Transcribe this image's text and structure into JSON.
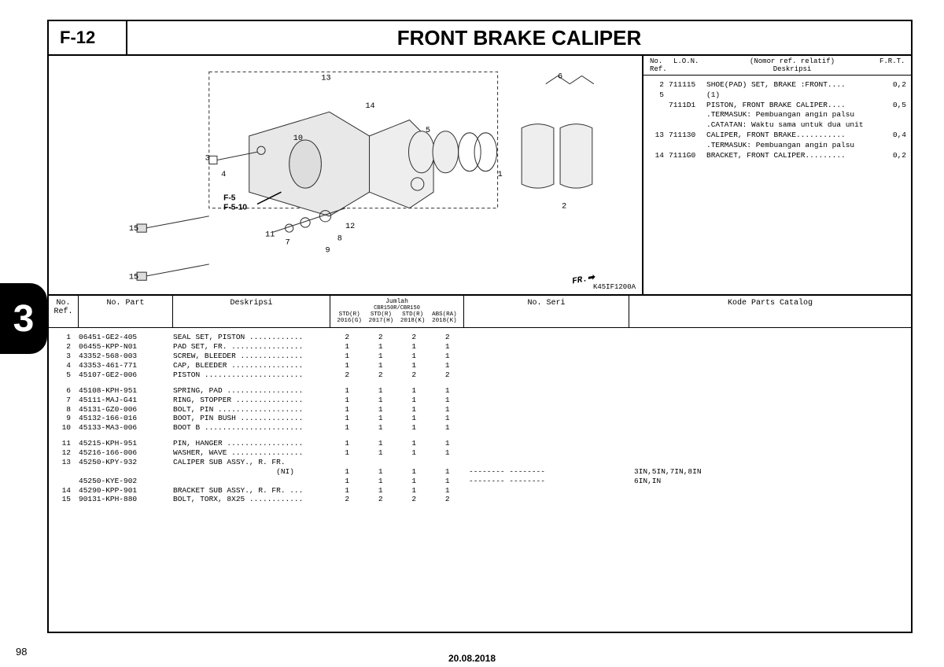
{
  "header": {
    "section_code": "F-12",
    "title": "FRONT BRAKE CALIPER"
  },
  "side_tab": "3",
  "page_number": "98",
  "footer_date": "20.08.2018",
  "diagram": {
    "code": "K45IF1200A",
    "fr_label": "FR.",
    "ref_label": "F-5\nF-5-10",
    "callouts": [
      "1",
      "2",
      "3",
      "4",
      "5",
      "6",
      "7",
      "8",
      "9",
      "10",
      "11",
      "12",
      "13",
      "14",
      "15"
    ],
    "stroke_color": "#333333",
    "fill_color": "#e8e8e8"
  },
  "lon": {
    "head": {
      "ref": "No.\nRef.",
      "lon": "L.O.N.",
      "desc_top": "(Nomor ref. relatif)",
      "desc": "Deskripsi",
      "frt": "F.R.T."
    },
    "rows": [
      {
        "ref": "2",
        "lon": "711115",
        "desc": "SHOE(PAD) SET, BRAKE :FRONT....",
        "frt": "0,2"
      },
      {
        "ref": "5",
        "lon": "",
        "desc": "(1)",
        "frt": ""
      },
      {
        "ref": "",
        "lon": "7111D1",
        "desc": "PISTON, FRONT BRAKE CALIPER....",
        "frt": "0,5"
      },
      {
        "ref": "",
        "lon": "",
        "desc": ".TERMASUK: Pembuangan angin palsu",
        "frt": ""
      },
      {
        "ref": "",
        "lon": "",
        "desc": ".CATATAN: Waktu sama untuk dua unit",
        "frt": ""
      },
      {
        "ref": "13",
        "lon": "711130",
        "desc": "CALIPER, FRONT BRAKE...........",
        "frt": "0,4"
      },
      {
        "ref": "",
        "lon": "",
        "desc": ".TERMASUK: Pembuangan angin palsu",
        "frt": ""
      },
      {
        "ref": "14",
        "lon": "7111G0",
        "desc": "BRACKET, FRONT CALIPER.........",
        "frt": "0,2"
      }
    ]
  },
  "table": {
    "head": {
      "ref": "No.\nRef.",
      "part": "No. Part",
      "desc": "Deskripsi",
      "qty_title": "Jumlah",
      "qty_sub_top": "CBR150R/CBR150",
      "qty_sub": [
        "STD(R)\n2016(G)",
        "STD(R)\n2017(H)",
        "STD(R)\n2018(K)",
        "ABS(RA)\n2018(K)"
      ],
      "seri": "No. Seri",
      "kode": "Kode Parts Catalog"
    },
    "groups": [
      [
        {
          "ref": "1",
          "part": "06451-GE2-405",
          "desc": "SEAL SET, PISTON ............",
          "q": [
            "2",
            "2",
            "2",
            "2"
          ],
          "seri": "",
          "kode": ""
        },
        {
          "ref": "2",
          "part": "06455-KPP-N01",
          "desc": "PAD SET, FR. ................",
          "q": [
            "1",
            "1",
            "1",
            "1"
          ],
          "seri": "",
          "kode": ""
        },
        {
          "ref": "3",
          "part": "43352-568-003",
          "desc": "SCREW, BLEEDER ..............",
          "q": [
            "1",
            "1",
            "1",
            "1"
          ],
          "seri": "",
          "kode": ""
        },
        {
          "ref": "4",
          "part": "43353-461-771",
          "desc": "CAP, BLEEDER ................",
          "q": [
            "1",
            "1",
            "1",
            "1"
          ],
          "seri": "",
          "kode": ""
        },
        {
          "ref": "5",
          "part": "45107-GE2-006",
          "desc": "PISTON ......................",
          "q": [
            "2",
            "2",
            "2",
            "2"
          ],
          "seri": "",
          "kode": ""
        }
      ],
      [
        {
          "ref": "6",
          "part": "45108-KPH-951",
          "desc": "SPRING, PAD .................",
          "q": [
            "1",
            "1",
            "1",
            "1"
          ],
          "seri": "",
          "kode": ""
        },
        {
          "ref": "7",
          "part": "45111-MAJ-G41",
          "desc": "RING, STOPPER ...............",
          "q": [
            "1",
            "1",
            "1",
            "1"
          ],
          "seri": "",
          "kode": ""
        },
        {
          "ref": "8",
          "part": "45131-GZ0-006",
          "desc": "BOLT, PIN ...................",
          "q": [
            "1",
            "1",
            "1",
            "1"
          ],
          "seri": "",
          "kode": ""
        },
        {
          "ref": "9",
          "part": "45132-166-016",
          "desc": "BOOT, PIN BUSH ..............",
          "q": [
            "1",
            "1",
            "1",
            "1"
          ],
          "seri": "",
          "kode": ""
        },
        {
          "ref": "10",
          "part": "45133-MA3-006",
          "desc": "BOOT B ......................",
          "q": [
            "1",
            "1",
            "1",
            "1"
          ],
          "seri": "",
          "kode": ""
        }
      ],
      [
        {
          "ref": "11",
          "part": "45215-KPH-951",
          "desc": "PIN, HANGER .................",
          "q": [
            "1",
            "1",
            "1",
            "1"
          ],
          "seri": "",
          "kode": ""
        },
        {
          "ref": "12",
          "part": "45216-166-006",
          "desc": "WASHER, WAVE ................",
          "q": [
            "1",
            "1",
            "1",
            "1"
          ],
          "seri": "",
          "kode": ""
        },
        {
          "ref": "13",
          "part": "45250-KPY-932",
          "desc": "CALIPER SUB ASSY., R. FR.",
          "q": [
            "",
            "",
            "",
            ""
          ],
          "seri": "",
          "kode": ""
        },
        {
          "ref": "",
          "part": "",
          "desc": "                       (NI)",
          "q": [
            "1",
            "1",
            "1",
            "1"
          ],
          "seri": "-------- --------",
          "kode": "3IN,5IN,7IN,8IN"
        },
        {
          "ref": "",
          "part": "45250-KYE-902",
          "desc": "",
          "q": [
            "1",
            "1",
            "1",
            "1"
          ],
          "seri": "-------- --------",
          "kode": "6IN,IN"
        },
        {
          "ref": "14",
          "part": "45290-KPP-901",
          "desc": "BRACKET SUB ASSY., R. FR. ...",
          "q": [
            "1",
            "1",
            "1",
            "1"
          ],
          "seri": "",
          "kode": ""
        },
        {
          "ref": "15",
          "part": "90131-KPH-880",
          "desc": "BOLT, TORX, 8X25 ............",
          "q": [
            "2",
            "2",
            "2",
            "2"
          ],
          "seri": "",
          "kode": ""
        }
      ]
    ]
  }
}
